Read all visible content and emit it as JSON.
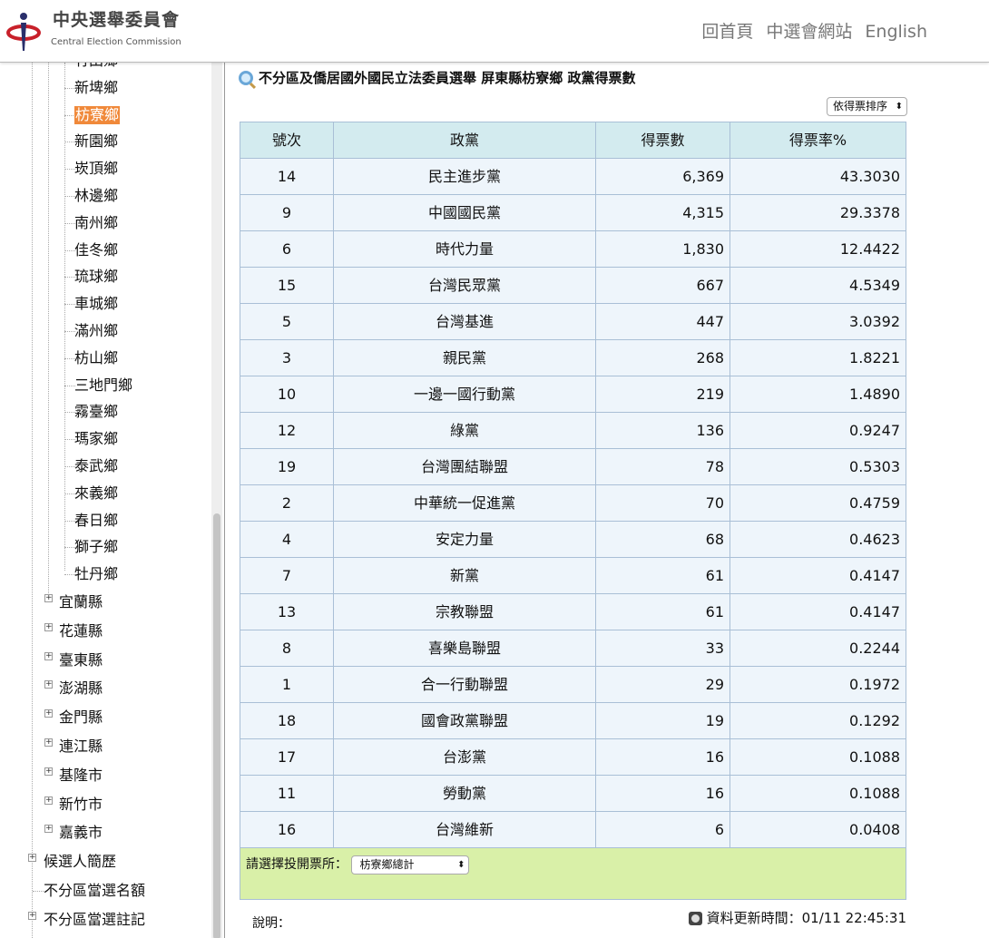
{
  "header": {
    "logo_zh": "中央選舉委員會",
    "logo_en": "Central Election Commission",
    "nav": [
      "回首頁",
      "中選會網站",
      "English"
    ]
  },
  "sidebar": {
    "townships": [
      "竹田鄉",
      "新埤鄉",
      "枋寮鄉",
      "新園鄉",
      "崁頂鄉",
      "林邊鄉",
      "南州鄉",
      "佳冬鄉",
      "琉球鄉",
      "車城鄉",
      "滿州鄉",
      "枋山鄉",
      "三地門鄉",
      "霧臺鄉",
      "瑪家鄉",
      "泰武鄉",
      "來義鄉",
      "春日鄉",
      "獅子鄉",
      "牡丹鄉"
    ],
    "selected": "枋寮鄉",
    "counties": [
      "宜蘭縣",
      "花蓮縣",
      "臺東縣",
      "澎湖縣",
      "金門縣",
      "連江縣",
      "基隆市",
      "新竹市",
      "嘉義市"
    ],
    "top": [
      {
        "label": "候選人簡歷",
        "expandable": true
      },
      {
        "label": "不分區當選名額",
        "expandable": false
      },
      {
        "label": "不分區當選註記",
        "expandable": true
      }
    ]
  },
  "main": {
    "title": "不分區及僑居國外國民立法委員選舉 屏東縣枋寮鄉 政黨得票數",
    "sort_select": "依得票排序",
    "columns": [
      "號次",
      "政黨",
      "得票數",
      "得票率%"
    ],
    "rows": [
      [
        "14",
        "民主進步黨",
        "6,369",
        "43.3030"
      ],
      [
        "9",
        "中國國民黨",
        "4,315",
        "29.3378"
      ],
      [
        "6",
        "時代力量",
        "1,830",
        "12.4422"
      ],
      [
        "15",
        "台灣民眾黨",
        "667",
        "4.5349"
      ],
      [
        "5",
        "台灣基進",
        "447",
        "3.0392"
      ],
      [
        "3",
        "親民黨",
        "268",
        "1.8221"
      ],
      [
        "10",
        "一邊一國行動黨",
        "219",
        "1.4890"
      ],
      [
        "12",
        "綠黨",
        "136",
        "0.9247"
      ],
      [
        "19",
        "台灣團結聯盟",
        "78",
        "0.5303"
      ],
      [
        "2",
        "中華統一促進黨",
        "70",
        "0.4759"
      ],
      [
        "4",
        "安定力量",
        "68",
        "0.4623"
      ],
      [
        "7",
        "新黨",
        "61",
        "0.4147"
      ],
      [
        "13",
        "宗教聯盟",
        "61",
        "0.4147"
      ],
      [
        "8",
        "喜樂島聯盟",
        "33",
        "0.2244"
      ],
      [
        "1",
        "合一行動聯盟",
        "29",
        "0.1972"
      ],
      [
        "18",
        "國會政黨聯盟",
        "19",
        "0.1292"
      ],
      [
        "17",
        "台澎黨",
        "16",
        "0.1088"
      ],
      [
        "11",
        "勞動黨",
        "16",
        "0.1088"
      ],
      [
        "16",
        "台灣維新",
        "6",
        "0.0408"
      ]
    ],
    "station_label": "請選擇投開票所：",
    "station_value": "枋寮鄉總計",
    "note_label": "說明：",
    "update_label": "資料更新時間：01/11 22:45:31"
  }
}
